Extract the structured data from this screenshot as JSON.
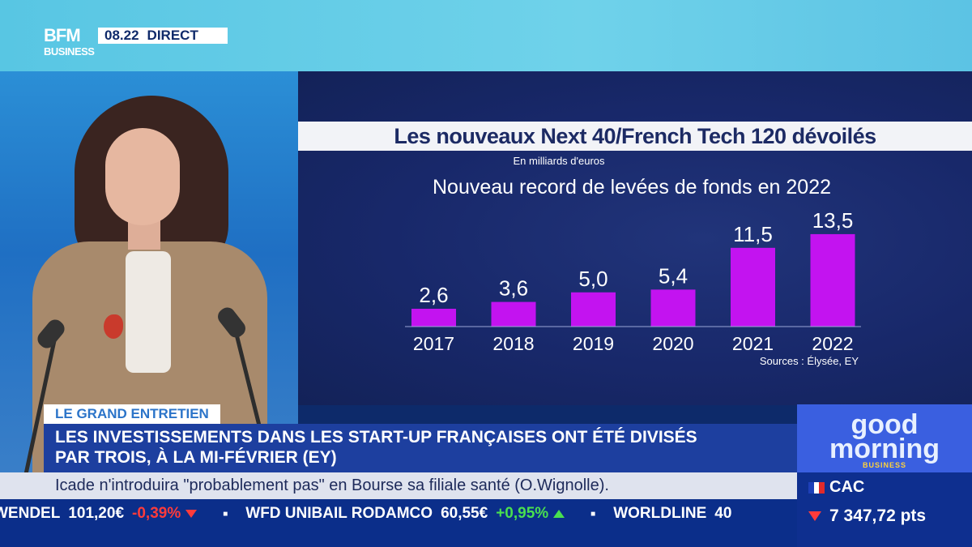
{
  "channel": {
    "logo_line1": "BFM",
    "logo_line2": "BUSINESS",
    "time": "08.22",
    "live": "DIRECT"
  },
  "chart_title": "Les nouveaux Next 40/French Tech 120 dévoilés",
  "chart_data": {
    "type": "bar",
    "title": "Nouveau record de levées de fonds en 2022",
    "unit_label": "En milliards d'euros",
    "categories": [
      "2017",
      "2018",
      "2019",
      "2020",
      "2021",
      "2022"
    ],
    "values": [
      2.6,
      3.6,
      5.0,
      5.4,
      11.5,
      13.5
    ],
    "value_labels": [
      "2,6",
      "3,6",
      "5,0",
      "5,4",
      "11,5",
      "13,5"
    ],
    "source": "Sources : Élysée, EY",
    "bar_color": "#c313f0",
    "xlabel": "",
    "ylabel": ""
  },
  "lower_third": {
    "tag": "LE GRAND ENTRETIEN",
    "headline_line1": "LES INVESTISSEMENTS DANS LES START-UP FRANÇAISES ONT ÉTÉ DIVISÉS",
    "headline_line2": "PAR TROIS, À LA MI-FÉVRIER (EY)",
    "crawl": "Icade n'introduira \"probablement pas\" en Bourse sa filiale santé (O.Wignolle)."
  },
  "ticker": [
    {
      "name": "WENDEL",
      "value": "101,20€",
      "change": "-0,39%",
      "direction": "down"
    },
    {
      "name": "WFD UNIBAIL RODAMCO",
      "value": "60,55€",
      "change": "+0,95%",
      "direction": "up"
    },
    {
      "name": "WORLDLINE",
      "value": "40",
      "change": "",
      "direction": ""
    }
  ],
  "show": {
    "line1": "good",
    "line2": "morning",
    "line3": "BUSINESS"
  },
  "index": {
    "name": "CAC",
    "value": "7 347,72 pts",
    "direction": "down"
  }
}
